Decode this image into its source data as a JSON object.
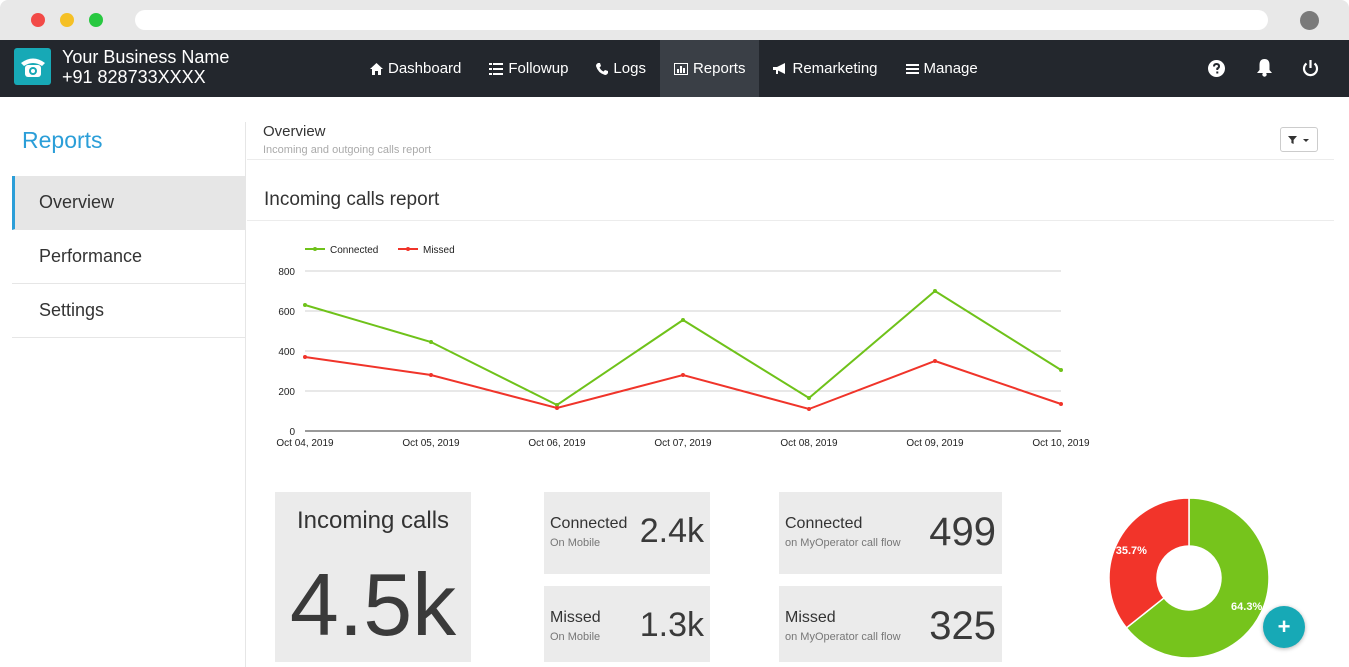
{
  "header": {
    "business_name": "Your Business Name",
    "phone": "+91 828733XXXX",
    "nav": [
      {
        "label": "Dashboard",
        "icon": "home-icon"
      },
      {
        "label": "Followup",
        "icon": "list-icon"
      },
      {
        "label": "Logs",
        "icon": "phone-icon"
      },
      {
        "label": "Reports",
        "icon": "chart-icon",
        "active": true
      },
      {
        "label": "Remarketing",
        "icon": "bullhorn-icon"
      },
      {
        "label": "Manage",
        "icon": "bars-icon"
      }
    ],
    "right_icons": [
      "help-icon",
      "bell-icon",
      "power-icon"
    ]
  },
  "sidebar": {
    "title": "Reports",
    "items": [
      {
        "label": "Overview",
        "active": true
      },
      {
        "label": "Performance"
      },
      {
        "label": "Settings"
      }
    ]
  },
  "main": {
    "title": "Overview",
    "subtitle": "Incoming and outgoing calls report",
    "section_title": "Incoming calls report"
  },
  "chart_data": [
    {
      "type": "line",
      "x": [
        "Oct 04, 2019",
        "Oct 05, 2019",
        "Oct 06, 2019",
        "Oct 07, 2019",
        "Oct 08, 2019",
        "Oct 09, 2019",
        "Oct 10, 2019"
      ],
      "series": [
        {
          "name": "Connected",
          "values": [
            630,
            445,
            130,
            555,
            165,
            700,
            305
          ],
          "color": "#6fc21a"
        },
        {
          "name": "Missed",
          "values": [
            370,
            280,
            115,
            280,
            110,
            350,
            135
          ],
          "color": "#f0342a"
        }
      ],
      "ylim": [
        0,
        800
      ],
      "yticks": [
        0,
        200,
        400,
        600,
        800
      ],
      "grid": true,
      "legend": "top-left"
    },
    {
      "type": "pie",
      "donut": true,
      "slices": [
        {
          "value": 64.3,
          "label": "64.3%",
          "color": "#76c41c"
        },
        {
          "value": 35.7,
          "label": "35.7%",
          "color": "#f2342a"
        }
      ]
    }
  ],
  "stats": {
    "incoming": {
      "label": "Incoming calls",
      "value": "4.5k"
    },
    "connected_mobile": {
      "label": "Connected",
      "sub": "On Mobile",
      "value": "2.4k"
    },
    "missed_mobile": {
      "label": "Missed",
      "sub": "On Mobile",
      "value": "1.3k"
    },
    "connected_flow": {
      "label": "Connected",
      "sub": "on MyOperator call flow",
      "value": "499"
    },
    "missed_flow": {
      "label": "Missed",
      "sub": "on MyOperator call flow",
      "value": "325"
    }
  },
  "fab_label": "+"
}
